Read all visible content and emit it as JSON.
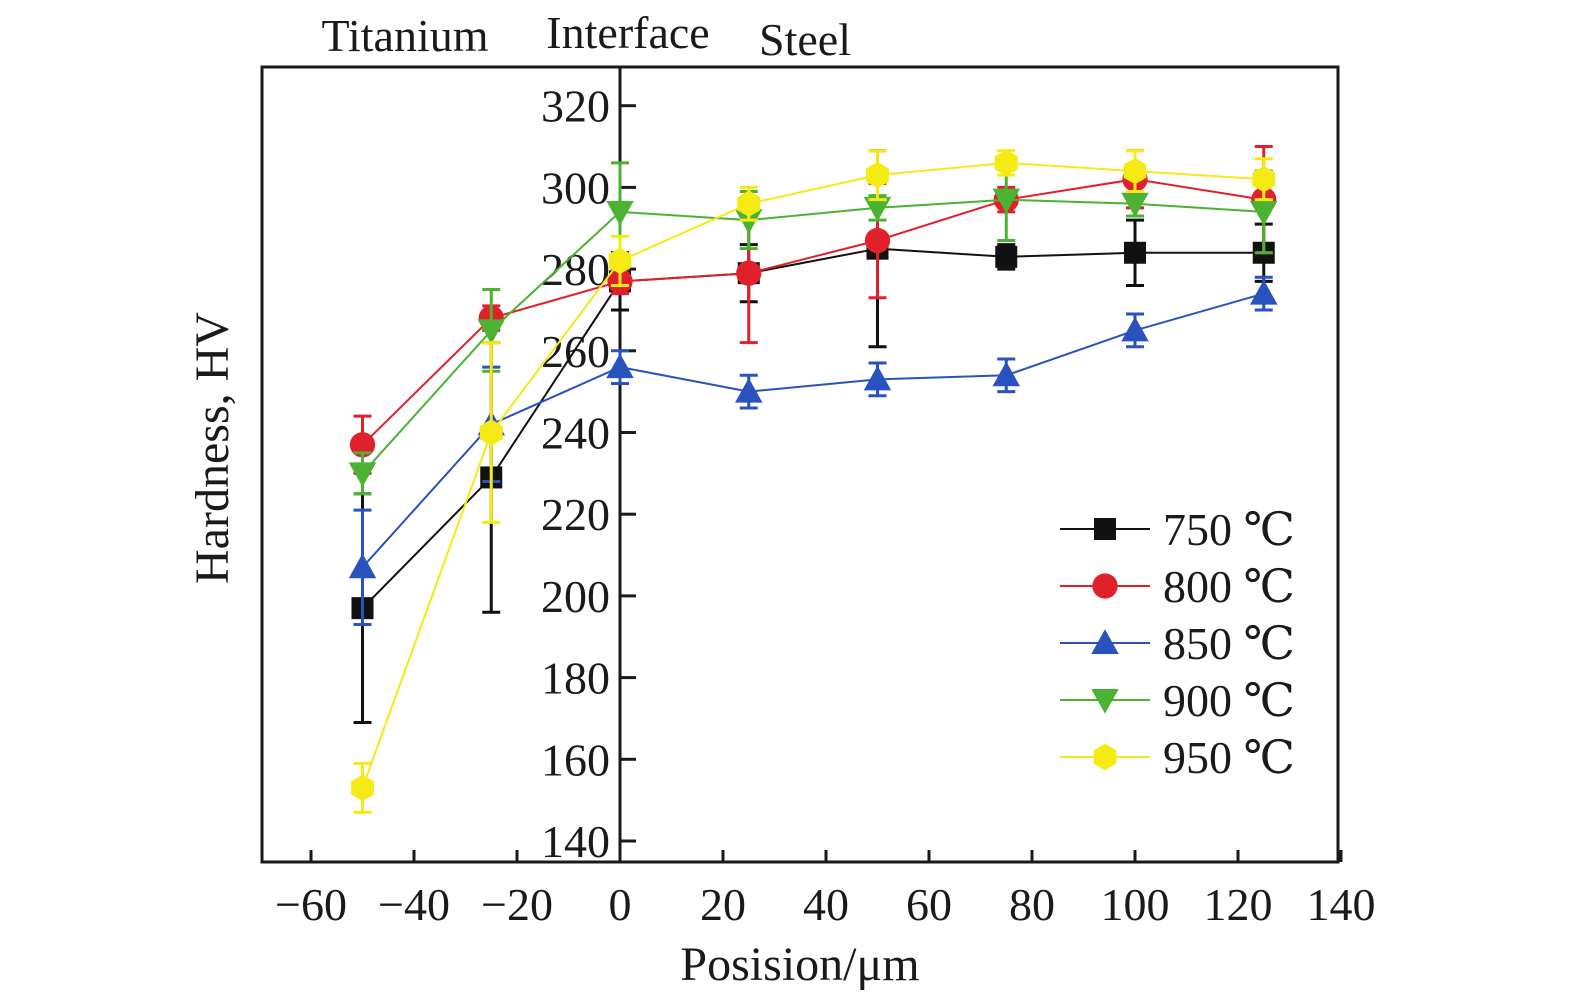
{
  "chart_data": {
    "type": "line",
    "xlabel": "Posision/μm",
    "ylabel": "Hardness, HV",
    "xlim": [
      -70,
      140
    ],
    "ylim": [
      135,
      330
    ],
    "xticks": [
      -60,
      -40,
      -20,
      0,
      20,
      40,
      60,
      80,
      100,
      120,
      140
    ],
    "xtick_labels": [
      "−60",
      "−40",
      "−20",
      "0",
      "20",
      "40",
      "60",
      "80",
      "100",
      "120",
      "140"
    ],
    "yticks": [
      140,
      160,
      180,
      200,
      220,
      240,
      260,
      280,
      300,
      320
    ],
    "ytick_labels": [
      "140",
      "160",
      "180",
      "200",
      "220",
      "240",
      "260",
      "280",
      "300",
      "320"
    ],
    "region_labels": [
      "Titanium",
      "Interface",
      "Steel"
    ],
    "interface_x": 0,
    "grid": false,
    "legend_position": "bottom-right",
    "x": [
      -50,
      -25,
      0,
      25,
      50,
      75,
      100,
      125
    ],
    "series": [
      {
        "name": "750 ℃",
        "color": "#111111",
        "marker": "square",
        "values": [
          197,
          229,
          277,
          279,
          285,
          283,
          284,
          284
        ],
        "errors": [
          28,
          33,
          7,
          7,
          24,
          3,
          8,
          7
        ]
      },
      {
        "name": "800 ℃",
        "color": "#e0202a",
        "marker": "circle",
        "values": [
          237,
          268,
          277,
          279,
          287,
          297,
          302,
          297
        ],
        "errors": [
          7,
          3,
          3,
          17,
          14,
          3,
          7,
          13
        ]
      },
      {
        "name": "850 ℃",
        "color": "#2a52be",
        "marker": "triangle-up",
        "values": [
          207,
          242,
          256,
          250,
          253,
          254,
          265,
          274
        ],
        "errors": [
          14,
          14,
          4,
          4,
          4,
          4,
          4,
          4
        ]
      },
      {
        "name": "900 ℃",
        "color": "#4cb233",
        "marker": "triangle-down",
        "values": [
          230,
          265,
          294,
          292,
          295,
          297,
          296,
          294
        ],
        "errors": [
          5,
          10,
          12,
          7,
          3,
          10,
          3,
          10
        ]
      },
      {
        "name": "950 ℃",
        "color": "#f5ea14",
        "marker": "hexagon",
        "values": [
          153,
          240,
          282,
          296,
          303,
          306,
          304,
          302
        ],
        "errors": [
          6,
          22,
          6,
          4,
          6,
          3,
          5,
          5
        ]
      }
    ]
  }
}
